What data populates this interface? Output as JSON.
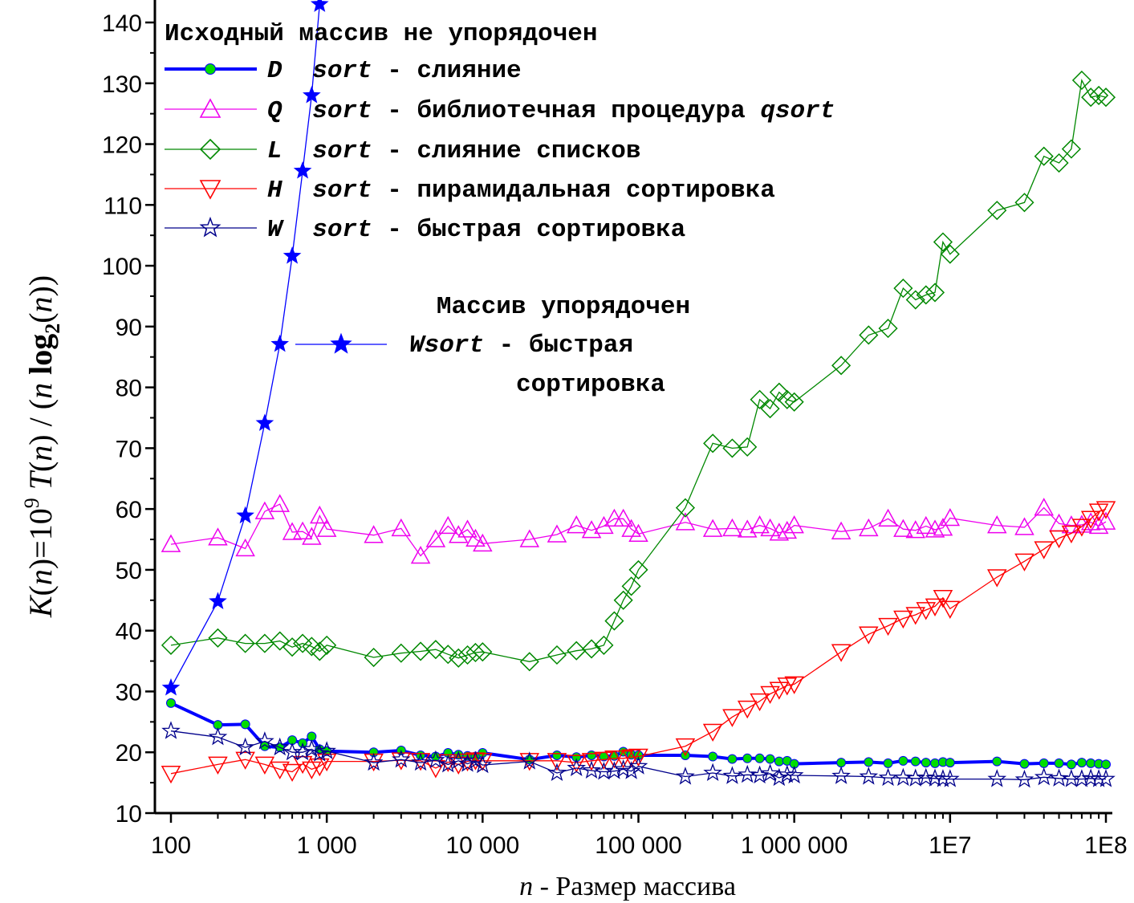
{
  "chart_data": {
    "type": "line",
    "xscale": "log",
    "xlim": [
      100,
      100000000
    ],
    "ylim": [
      10,
      143
    ],
    "xticks": [
      {
        "v": 100,
        "label": "100"
      },
      {
        "v": 1000,
        "label": "1 000"
      },
      {
        "v": 10000,
        "label": "10 000"
      },
      {
        "v": 100000,
        "label": "100 000"
      },
      {
        "v": 1000000,
        "label": "1 000 000"
      },
      {
        "v": 10000000,
        "label": "1E7"
      },
      {
        "v": 100000000,
        "label": "1E8"
      }
    ],
    "yticks": [
      10,
      20,
      30,
      40,
      50,
      60,
      70,
      80,
      90,
      100,
      110,
      120,
      130,
      140
    ],
    "xlabel": {
      "var": "n",
      "text": " - Размер массива"
    },
    "ylabel": {
      "k": "K",
      "n1": "n",
      "eq": ")=10",
      "exp": "9",
      "t": " T",
      "n2": "n",
      "slash": ") / (",
      "n3": "n",
      "log": " log",
      "sub": "2",
      "n4": "n",
      "close": "))"
    },
    "legend_title": "Исходный массив не упорядочен",
    "legend2": {
      "title": "Массив упорядочен",
      "letter": "Wsort",
      "line1_rest": " - быстрая",
      "line2": "сортировка"
    },
    "series": [
      {
        "letter": "D",
        "word": " sort",
        "desc": " - слияние",
        "color": "#0000ff",
        "marker": "circle",
        "marker_fill": "#00dd00",
        "stroke_width": 4,
        "x": [
          100,
          200,
          300,
          400,
          500,
          600,
          700,
          800,
          900,
          1000,
          2000,
          3000,
          4000,
          5000,
          6000,
          7000,
          8000,
          9000,
          10000,
          20000,
          30000,
          40000,
          50000,
          60000,
          70000,
          80000,
          90000,
          100000,
          200000,
          300000,
          400000,
          500000,
          600000,
          700000,
          800000,
          900000,
          1000000,
          2000000,
          3000000,
          4000000,
          5000000,
          6000000,
          7000000,
          8000000,
          9000000,
          10000000,
          20000000,
          30000000,
          40000000,
          50000000,
          60000000,
          70000000,
          80000000,
          90000000,
          100000000
        ],
        "y": [
          28.1,
          24.5,
          24.6,
          21.0,
          20.8,
          22.0,
          21.5,
          22.6,
          20.5,
          20.2,
          20.0,
          20.3,
          19.5,
          19.3,
          19.9,
          19.6,
          19.4,
          19.3,
          19.9,
          18.8,
          19.5,
          19.2,
          19.5,
          19.3,
          19.4,
          20.1,
          19.6,
          19.5,
          19.5,
          19.3,
          18.9,
          19.0,
          19.0,
          18.9,
          18.5,
          18.6,
          18.1,
          18.3,
          18.4,
          18.2,
          18.6,
          18.5,
          18.3,
          18.2,
          18.4,
          18.3,
          18.5,
          18.1,
          18.2,
          18.2,
          18.0,
          18.3,
          18.2,
          18.1,
          18.0
        ]
      },
      {
        "letter": "Q",
        "word": " sort",
        "desc": " - библиотечная процедура ",
        "desc_tail": "qsort",
        "color": "#ee00ee",
        "marker": "triangle-up",
        "marker_fill": "none",
        "stroke_width": 1.3,
        "x": [
          100,
          200,
          300,
          400,
          500,
          600,
          700,
          800,
          900,
          1000,
          2000,
          3000,
          4000,
          5000,
          6000,
          7000,
          8000,
          9000,
          10000,
          20000,
          30000,
          40000,
          50000,
          60000,
          70000,
          80000,
          90000,
          100000,
          200000,
          300000,
          400000,
          500000,
          600000,
          700000,
          800000,
          900000,
          1000000,
          2000000,
          3000000,
          4000000,
          5000000,
          6000000,
          7000000,
          8000000,
          9000000,
          10000000,
          20000000,
          30000000,
          40000000,
          50000000,
          60000000,
          70000000,
          80000000,
          90000000,
          100000000
        ],
        "y": [
          54.2,
          55.3,
          53.5,
          59.6,
          60.8,
          56.2,
          56.3,
          55.4,
          58.9,
          56.7,
          55.7,
          56.8,
          52.3,
          55.0,
          57.2,
          55.7,
          56.6,
          55.1,
          54.3,
          55.0,
          55.8,
          57.3,
          56.5,
          57.2,
          58.4,
          58.4,
          56.7,
          55.9,
          57.8,
          56.7,
          56.8,
          56.6,
          57.3,
          56.8,
          56.1,
          56.4,
          57.3,
          56.3,
          56.8,
          58.4,
          56.7,
          56.5,
          57.2,
          56.6,
          56.9,
          58.5,
          57.3,
          57.0,
          60.2,
          57.6,
          57.3,
          57.4,
          57.8,
          57.2,
          57.9
        ]
      },
      {
        "letter": "L",
        "word": " sort",
        "desc": " - слияние списков",
        "color": "#008800",
        "marker": "diamond",
        "marker_fill": "none",
        "stroke_width": 1.3,
        "x": [
          100,
          200,
          300,
          400,
          500,
          600,
          700,
          800,
          900,
          1000,
          2000,
          3000,
          4000,
          5000,
          6000,
          7000,
          8000,
          9000,
          10000,
          20000,
          30000,
          40000,
          50000,
          60000,
          70000,
          80000,
          90000,
          100000,
          200000,
          300000,
          400000,
          500000,
          600000,
          700000,
          800000,
          900000,
          1000000,
          2000000,
          3000000,
          4000000,
          5000000,
          6000000,
          7000000,
          8000000,
          9000000,
          10000000,
          20000000,
          30000000,
          40000000,
          50000000,
          60000000,
          70000000,
          80000000,
          90000000,
          100000000
        ],
        "y": [
          37.6,
          38.8,
          37.9,
          37.9,
          38.3,
          37.3,
          37.9,
          37.4,
          36.6,
          37.6,
          35.6,
          36.3,
          36.6,
          36.9,
          36.1,
          35.5,
          36.0,
          36.4,
          36.5,
          34.9,
          36.0,
          36.7,
          37.0,
          37.6,
          41.6,
          45.0,
          47.3,
          50.0,
          60.2,
          70.8,
          70.0,
          70.2,
          78.0,
          76.5,
          79.2,
          78.0,
          77.6,
          83.6,
          88.6,
          89.7,
          96.3,
          94.4,
          95.2,
          95.6,
          103.9,
          101.9,
          109.1,
          110.4,
          118.0,
          116.9,
          119.2,
          130.5,
          127.7,
          128.0,
          127.7
        ]
      },
      {
        "letter": "H",
        "word": " sort",
        "desc": " - пирамидальная сортировка",
        "color": "#ff0000",
        "marker": "triangle-down",
        "marker_fill": "none",
        "stroke_width": 1.3,
        "x": [
          100,
          200,
          300,
          400,
          500,
          600,
          700,
          800,
          900,
          1000,
          2000,
          3000,
          4000,
          5000,
          6000,
          7000,
          8000,
          9000,
          10000,
          20000,
          30000,
          40000,
          50000,
          60000,
          70000,
          80000,
          90000,
          100000,
          200000,
          300000,
          400000,
          500000,
          600000,
          700000,
          800000,
          900000,
          1000000,
          2000000,
          3000000,
          4000000,
          5000000,
          6000000,
          7000000,
          8000000,
          9000000,
          10000000,
          20000000,
          30000000,
          40000000,
          50000000,
          60000000,
          70000000,
          80000000,
          90000000,
          100000000
        ],
        "y": [
          16.5,
          18.0,
          18.8,
          18.0,
          17.2,
          16.8,
          18.1,
          17.2,
          17.7,
          18.5,
          18.5,
          18.7,
          18.6,
          17.4,
          18.4,
          18.0,
          18.5,
          18.7,
          18.6,
          18.6,
          18.6,
          18.3,
          18.6,
          18.8,
          19.0,
          19.0,
          19.2,
          19.3,
          21.0,
          23.4,
          25.8,
          27.2,
          28.4,
          29.6,
          30.3,
          31.0,
          31.2,
          36.5,
          39.4,
          40.8,
          42.0,
          42.6,
          43.4,
          44.0,
          45.4,
          43.6,
          48.8,
          51.4,
          53.4,
          55.2,
          56.0,
          57.1,
          58.4,
          59.6,
          60.0
        ]
      },
      {
        "letter": "W",
        "word": " sort",
        "desc": " - быстрая сортировка",
        "color": "#00008b",
        "marker": "star",
        "marker_fill": "none",
        "stroke_width": 1.3,
        "x": [
          100,
          200,
          300,
          400,
          500,
          600,
          700,
          800,
          900,
          1000,
          2000,
          3000,
          4000,
          5000,
          6000,
          7000,
          8000,
          9000,
          10000,
          20000,
          30000,
          40000,
          50000,
          60000,
          70000,
          80000,
          90000,
          100000,
          200000,
          300000,
          400000,
          500000,
          600000,
          700000,
          800000,
          900000,
          1000000,
          2000000,
          3000000,
          4000000,
          5000000,
          6000000,
          7000000,
          8000000,
          9000000,
          10000000,
          20000000,
          30000000,
          40000000,
          50000000,
          60000000,
          70000000,
          80000000,
          90000000,
          100000000
        ],
        "y": [
          23.5,
          22.5,
          20.8,
          21.8,
          20.8,
          20.0,
          20.0,
          20.5,
          19.8,
          20.2,
          18.3,
          18.8,
          18.3,
          18.7,
          18.0,
          18.6,
          18.1,
          18.6,
          17.9,
          18.5,
          16.6,
          17.4,
          17.0,
          16.8,
          16.9,
          17.2,
          16.9,
          17.7,
          16.0,
          16.6,
          16.1,
          16.3,
          16.2,
          16.5,
          15.8,
          16.3,
          16.2,
          16.1,
          16.0,
          15.8,
          15.8,
          15.7,
          15.8,
          15.7,
          15.6,
          15.6,
          15.6,
          15.5,
          15.9,
          15.7,
          15.6,
          15.6,
          15.7,
          15.6,
          15.6
        ]
      },
      {
        "name_ref": "legend2",
        "color": "#0000ff",
        "marker": "filled-star",
        "marker_fill": "#0000ff",
        "stroke_width": 1.3,
        "x": [
          100,
          200,
          300,
          400,
          500,
          600,
          700,
          800,
          900
        ],
        "y": [
          30.6,
          44.8,
          58.9,
          74.1,
          87.1,
          101.6,
          115.6,
          128.0,
          143.0
        ]
      }
    ]
  }
}
